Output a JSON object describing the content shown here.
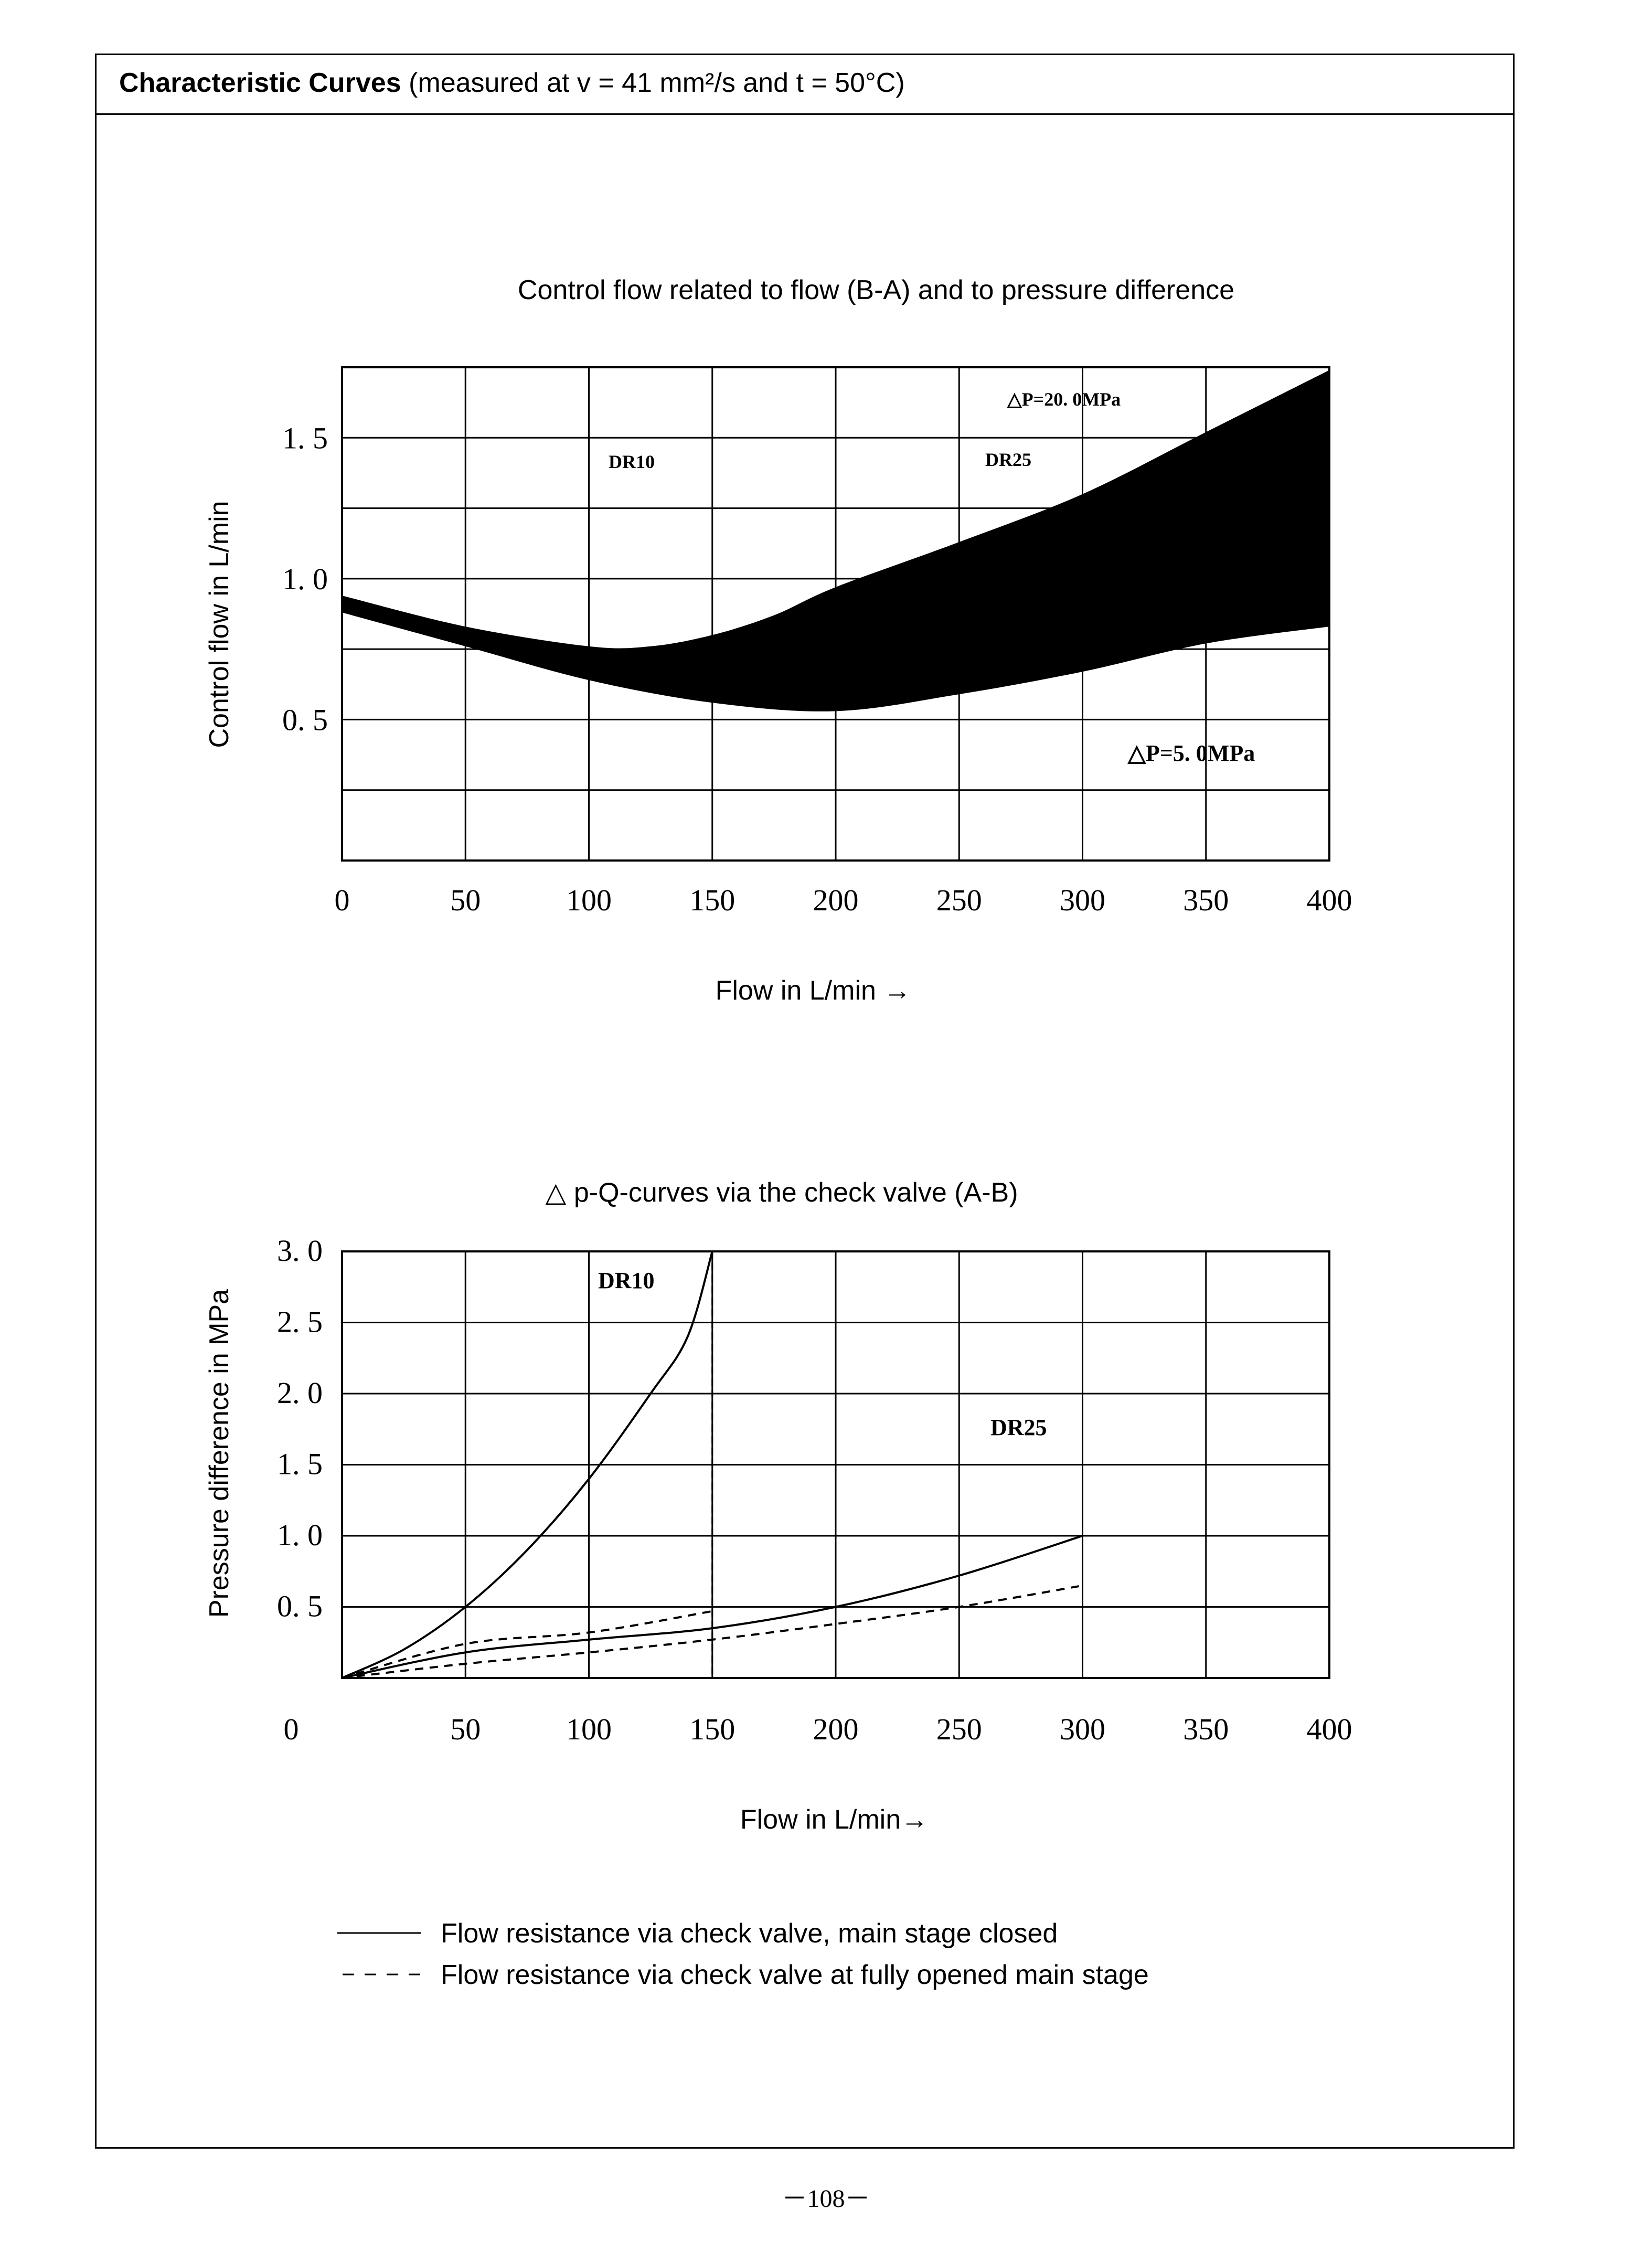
{
  "header": {
    "bold": "Characteristic Curves",
    "rest": " (measured at v = 41 mm²/s and t = 50°C)"
  },
  "chart_data": [
    {
      "type": "area",
      "title": "Control flow related to flow (B-A) and to pressure difference",
      "xlabel": "Flow in L/min →",
      "ylabel": "Control flow in L/min",
      "xlim": [
        0,
        400
      ],
      "ylim": [
        0,
        1.75
      ],
      "xticks": [
        "0",
        "50",
        "100",
        "150",
        "200",
        "250",
        "300",
        "350",
        "400"
      ],
      "xtick_values": [
        0,
        50,
        100,
        150,
        200,
        250,
        300,
        350,
        400
      ],
      "yticks": [
        "0. 5",
        "1. 0",
        "1. 5"
      ],
      "ytick_values": [
        0.5,
        1.0,
        1.5
      ],
      "grid_x": [
        50,
        100,
        150,
        200,
        250,
        300,
        350
      ],
      "grid_y": [
        0.25,
        0.5,
        0.75,
        1.0,
        1.25,
        1.5
      ],
      "grid": true,
      "color": "#000000",
      "series": [
        {
          "name": "△P=20. 0MPa",
          "x": [
            0,
            50,
            100,
            125,
            150,
            175,
            200,
            250,
            300,
            350,
            400
          ],
          "values": [
            0.94,
            0.83,
            0.76,
            0.76,
            0.8,
            0.87,
            0.97,
            1.13,
            1.3,
            1.52,
            1.74
          ]
        },
        {
          "name": "△P=5. 0MPa",
          "x": [
            0,
            50,
            100,
            150,
            200,
            250,
            300,
            350,
            400
          ],
          "values": [
            0.88,
            0.76,
            0.64,
            0.56,
            0.53,
            0.59,
            0.67,
            0.77,
            0.83
          ]
        }
      ],
      "annotations": [
        "DR10",
        "DR25"
      ]
    },
    {
      "type": "line",
      "title": "△ p-Q-curves via the check valve (A-B)",
      "xlabel": "Flow in L/min→",
      "ylabel": "Pressure difference in MPa",
      "xlim": [
        0,
        400
      ],
      "ylim": [
        0,
        3.0
      ],
      "xticks": [
        "0",
        "50",
        "100",
        "150",
        "200",
        "250",
        "300",
        "350",
        "400"
      ],
      "xtick_values": [
        0,
        50,
        100,
        150,
        200,
        250,
        300,
        350,
        400
      ],
      "yticks": [
        "0. 5",
        "1. 0",
        "1. 5",
        "2. 0",
        "2. 5",
        "3. 0"
      ],
      "ytick_values": [
        0.5,
        1.0,
        1.5,
        2.0,
        2.5,
        3.0
      ],
      "grid_x": [
        50,
        100,
        150,
        200,
        250,
        300,
        350
      ],
      "grid_y": [
        0.5,
        1.0,
        1.5,
        2.0,
        2.5,
        3.0
      ],
      "grid": true,
      "annotations": [
        "DR10",
        "DR25"
      ],
      "series": [
        {
          "name": "DR10",
          "style": "solid",
          "x": [
            0,
            25,
            50,
            75,
            100,
            125,
            140,
            150
          ],
          "values": [
            0,
            0.2,
            0.5,
            0.9,
            1.4,
            2.0,
            2.4,
            3.0
          ]
        },
        {
          "name": "DR25",
          "style": "solid",
          "x": [
            0,
            50,
            100,
            150,
            200,
            250,
            300
          ],
          "values": [
            0,
            0.18,
            0.27,
            0.35,
            0.5,
            0.72,
            1.0
          ]
        },
        {
          "name": "DR10",
          "style": "dashed",
          "x": [
            0,
            50,
            100,
            150
          ],
          "values": [
            0,
            0.24,
            0.32,
            0.47
          ]
        },
        {
          "name": "DR25",
          "style": "dashed",
          "x": [
            0,
            50,
            100,
            150,
            200,
            250,
            300
          ],
          "values": [
            0,
            0.1,
            0.18,
            0.27,
            0.38,
            0.5,
            0.65
          ]
        }
      ],
      "cutoff_lines_x": [
        150,
        300
      ]
    }
  ],
  "legend": [
    {
      "style": "solid",
      "text": "Flow resistance via check valve, main stage closed"
    },
    {
      "style": "dashed",
      "text": "Flow resistance via check valve at fully opened main stage"
    }
  ],
  "page_number": "－108－"
}
